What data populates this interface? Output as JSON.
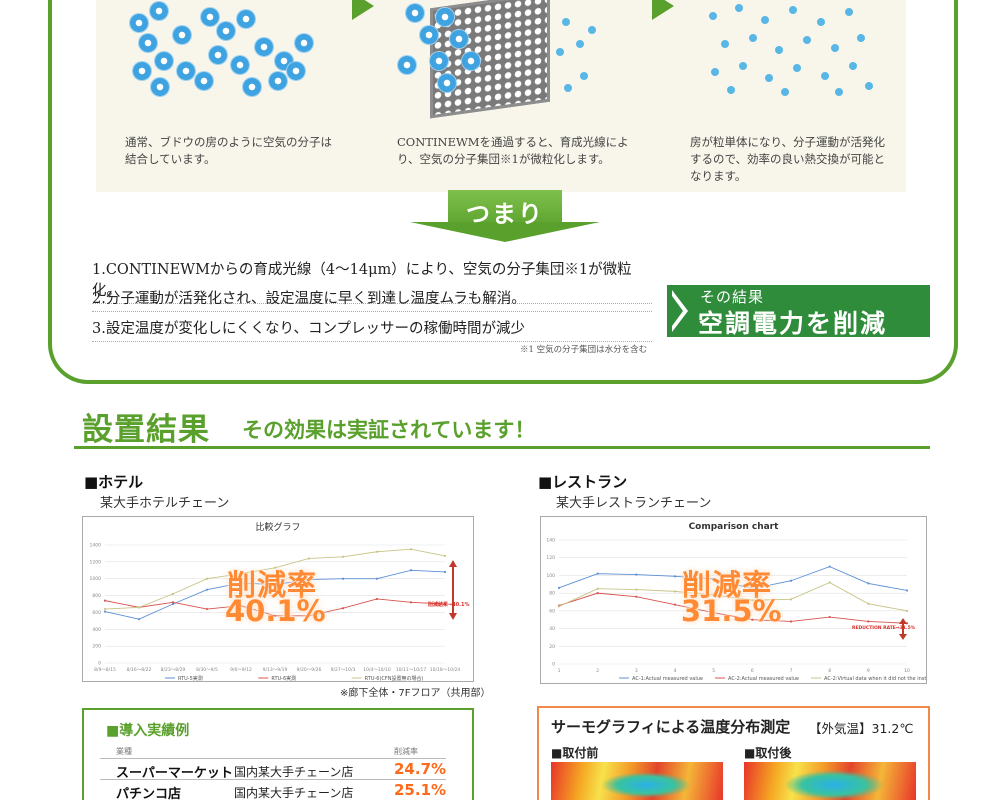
{
  "explain": {
    "step1": "通常、ブドウの房のように空気の分子は結合しています。",
    "step2": "CONTINEWMを通過すると、育成光線により、空気の分子集団※1が微粒化します。",
    "step3": "房が粒単体になり、分子運動が活発化するので、効率の良い熱交換が可能となります。",
    "tsumari": "つまり",
    "points": [
      "1.CONTINEWMからの育成光線（4〜14μm）により、空気の分子集団※1が微粒化。",
      "2.分子運動が活発化され、設定温度に早く到達し温度ムラも解消。",
      "3.設定温度が変化しにくくなり、コンプレッサーの稼働時間が減少"
    ],
    "result_small": "その結果",
    "result_big": "空調電力を削減",
    "footnote": "※1 空気の分子集団は水分を含む"
  },
  "section": {
    "title": "設置結果",
    "subtitle": "その効果は実証されています！"
  },
  "hotel": {
    "category": "■ホテル",
    "client": "某大手ホテルチェーン",
    "rate_label": "削減率",
    "rate_value": "40.1%",
    "note": "※廊下全体・7Fフロア（共用部）",
    "annotation": "削減結果⇒40.1%"
  },
  "restaurant": {
    "category": "■レストラン",
    "client": "某大手レストランチェーン",
    "rate_label": "削減率",
    "rate_value": "31.5%",
    "annotation": "REDUCTION RATE⇒31.5%"
  },
  "chart_data": [
    {
      "type": "line",
      "title": "比較グラフ",
      "x": [
        "8/9〜8/15",
        "8/16〜8/22",
        "8/23〜8/29",
        "8/30〜9/5",
        "9/6〜9/12",
        "9/13〜9/19",
        "9/20〜9/26",
        "9/27〜10/3",
        "10/4〜10/10",
        "10/11〜10/17",
        "10/18〜10/24"
      ],
      "series": [
        {
          "name": "RTU-5実測",
          "color": "#5b8fd6",
          "values": [
            610,
            520,
            700,
            870,
            950,
            930,
            990,
            1000,
            1000,
            1100,
            1080
          ]
        },
        {
          "name": "RTU-6実測",
          "color": "#d9534f",
          "values": [
            740,
            660,
            720,
            640,
            680,
            560,
            560,
            650,
            760,
            720,
            700
          ]
        },
        {
          "name": "RTU-6(CFN設置無の場合)",
          "color": "#c8c487",
          "values": [
            640,
            660,
            820,
            1000,
            1060,
            1130,
            1240,
            1260,
            1320,
            1350,
            1270
          ]
        }
      ],
      "ylim": [
        0,
        1400
      ]
    },
    {
      "type": "line",
      "title": "Comparison chart",
      "x": [
        "1",
        "2",
        "3",
        "4",
        "5",
        "6",
        "7",
        "8",
        "9",
        "10"
      ],
      "series": [
        {
          "name": "AC-1:Actual measured value",
          "color": "#5b8fd6",
          "values": [
            86,
            102,
            101,
            99,
            96,
            85,
            94,
            110,
            91,
            83
          ]
        },
        {
          "name": "AC-2:Actual measured value",
          "color": "#d9534f",
          "values": [
            66,
            80,
            76,
            67,
            58,
            50,
            48,
            53,
            48,
            46
          ]
        },
        {
          "name": "AC-2:Virtual data when it did not the installation",
          "color": "#c8c487",
          "values": [
            65,
            85,
            84,
            82,
            78,
            72,
            73,
            92,
            68,
            60
          ]
        }
      ],
      "ylim": [
        0,
        140
      ]
    }
  ],
  "records": {
    "title": "■導入実績例",
    "hdr_type": "業種",
    "hdr_rate": "削減率",
    "rows": [
      {
        "name": "スーパーマーケット",
        "desc": "国内某大手チェーン店",
        "rate": "24.7%"
      },
      {
        "name": "パチンコ店",
        "desc": "国内某大手チェーン店",
        "rate": "25.1%"
      }
    ]
  },
  "thermo": {
    "title": "サーモグラフィによる温度分布測定",
    "temp": "【外気温】31.2℃",
    "before": "■取付前",
    "after": "■取付後"
  }
}
